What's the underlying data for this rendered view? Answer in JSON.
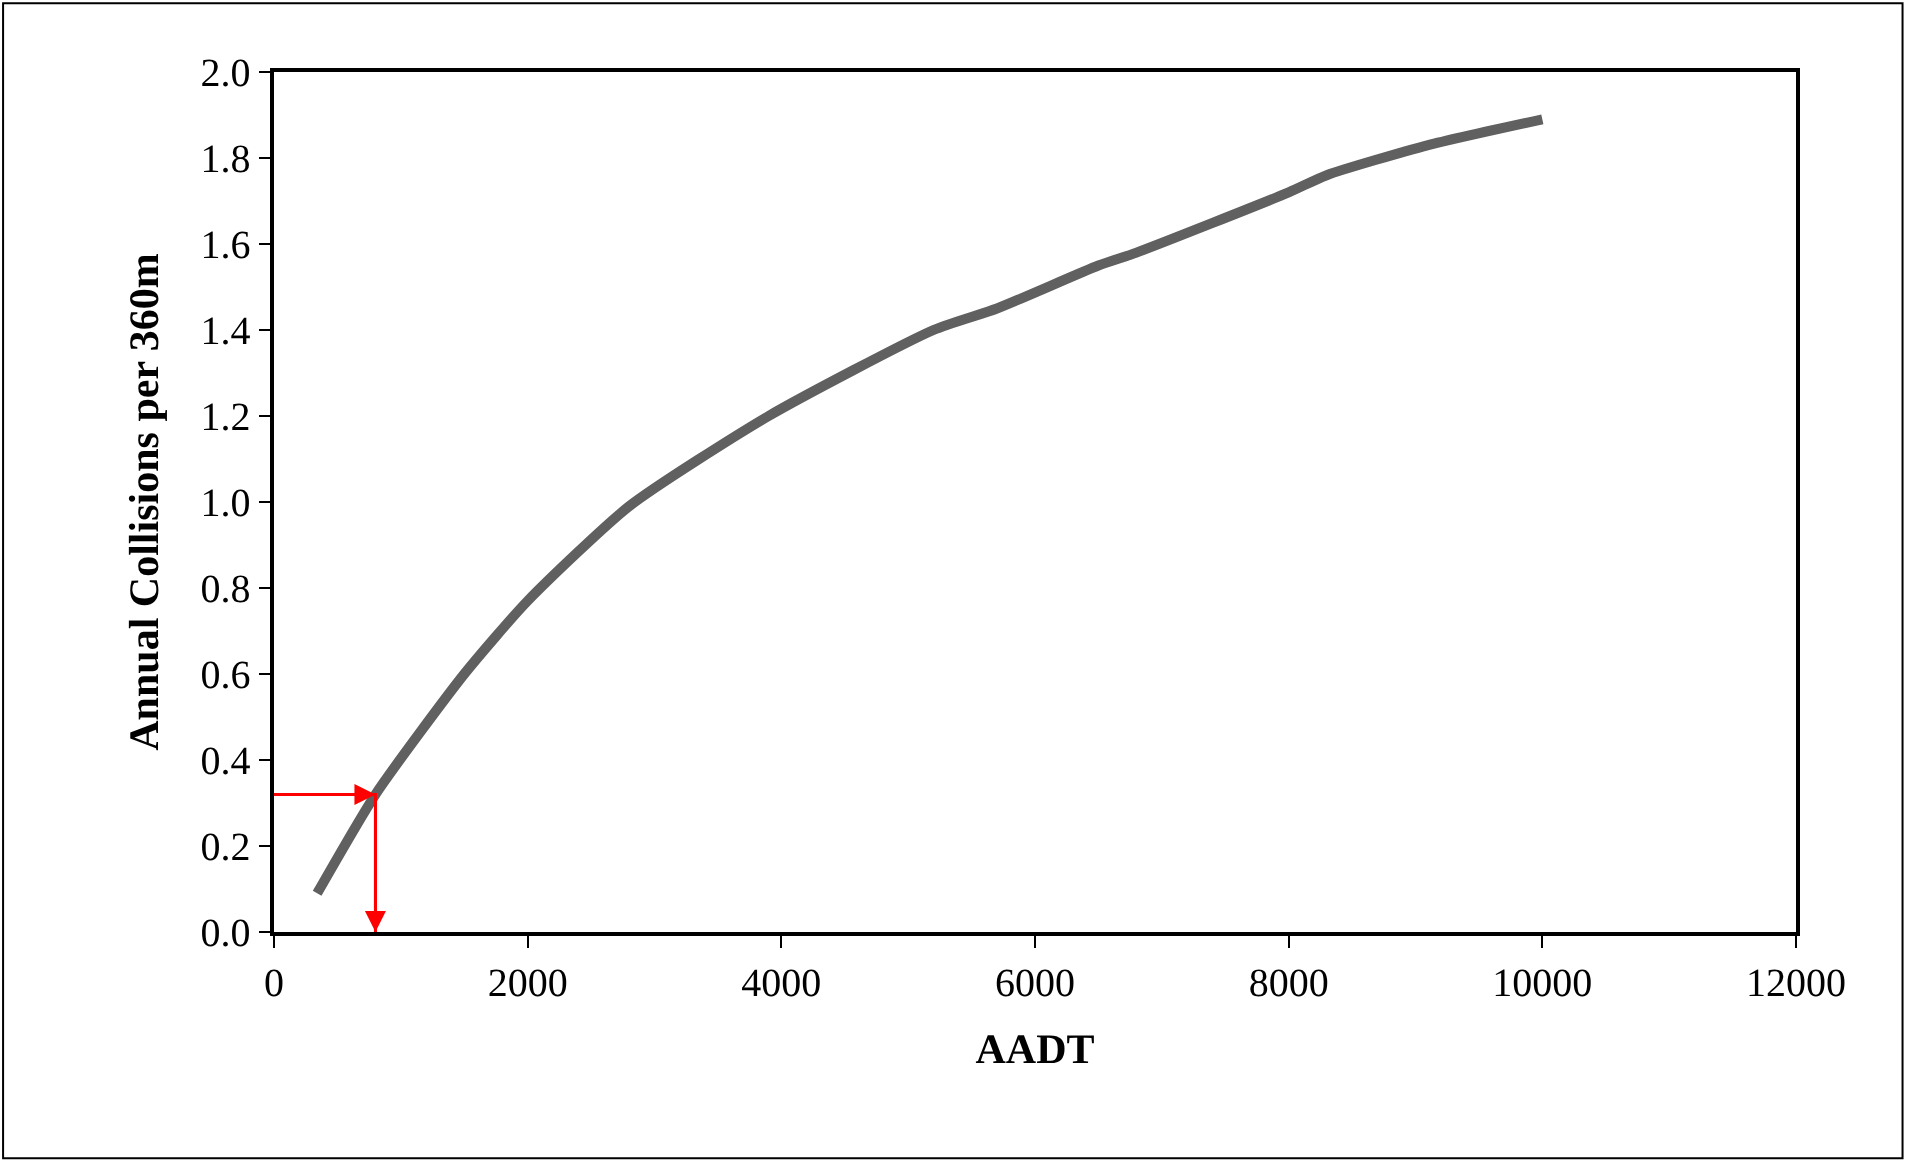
{
  "chart_data": {
    "type": "line",
    "xlabel": "AADT",
    "ylabel": "Annual Collisions per 360m",
    "xlim": [
      0,
      12000
    ],
    "xticks": [
      0,
      2000,
      4000,
      6000,
      8000,
      10000,
      12000
    ],
    "ylim": [
      0,
      2.0
    ],
    "yticks": [
      {
        "value": 0,
        "label": "0.0"
      },
      {
        "value": 0.2,
        "label": "0.2"
      },
      {
        "value": 0.4,
        "label": "0.4"
      },
      {
        "value": 0.6,
        "label": "0.6"
      },
      {
        "value": 0.8,
        "label": "0.8"
      },
      {
        "value": 1.0,
        "label": "1.0"
      },
      {
        "value": 1.2,
        "label": "1.2"
      },
      {
        "value": 1.4,
        "label": "1.4"
      },
      {
        "value": 1.6,
        "label": "1.6"
      },
      {
        "value": 1.8,
        "label": "1.8"
      },
      {
        "value": 2.0,
        "label": "2.0"
      }
    ],
    "series": [
      {
        "color": "#606060",
        "x": [
          340,
          800,
          1500,
          2000,
          2800,
          3900,
          5200,
          5700,
          6500,
          6800,
          8000,
          8300,
          9100,
          10000
        ],
        "values": [
          0.09,
          0.32,
          0.6,
          0.77,
          0.99,
          1.2,
          1.4,
          1.45,
          1.55,
          1.58,
          1.72,
          1.76,
          1.83,
          1.89
        ]
      },
      {
        "color": "#ff0000",
        "x": [
          0,
          800,
          800
        ],
        "values": [
          0.32,
          0.32,
          0
        ]
      }
    ]
  }
}
